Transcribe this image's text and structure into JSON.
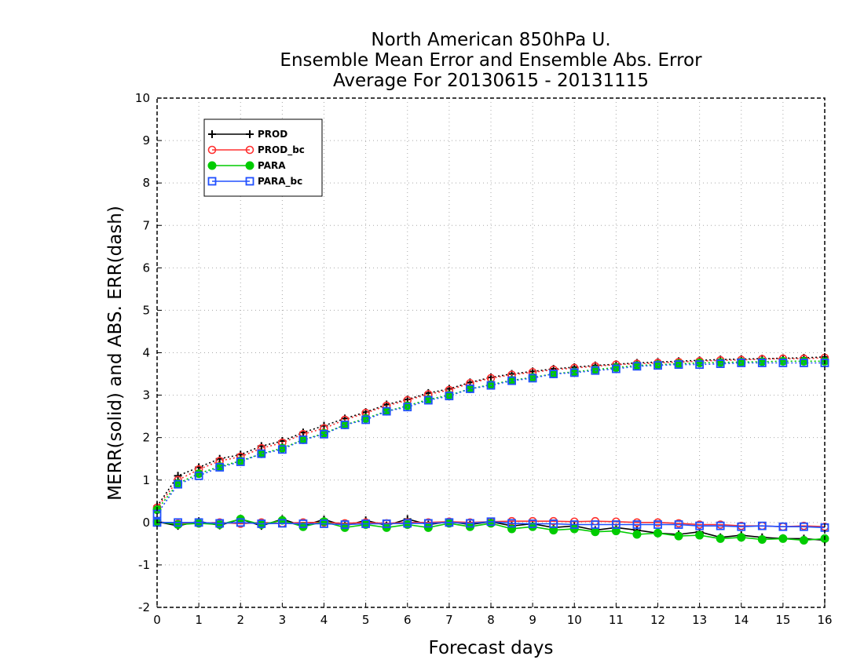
{
  "chart_data": {
    "type": "line",
    "title": [
      "North American 850hPa U.",
      "Ensemble Mean Error and Ensemble Abs. Error",
      "Average For 20130615 - 20131115"
    ],
    "xlabel": "Forecast days",
    "ylabel": "MERR(solid) and ABS. ERR(dash)",
    "xlim": [
      0,
      16
    ],
    "ylim": [
      -2,
      10
    ],
    "xticks": [
      0,
      1,
      2,
      3,
      4,
      5,
      6,
      7,
      8,
      9,
      10,
      11,
      12,
      13,
      14,
      15,
      16
    ],
    "yticks": [
      -2,
      -1,
      0,
      1,
      2,
      3,
      4,
      5,
      6,
      7,
      8,
      9,
      10
    ],
    "grid": true,
    "legend_position": "top-left",
    "x": [
      0,
      0.5,
      1,
      1.5,
      2,
      2.5,
      3,
      3.5,
      4,
      4.5,
      5,
      5.5,
      6,
      6.5,
      7,
      7.5,
      8,
      8.5,
      9,
      9.5,
      10,
      10.5,
      11,
      11.5,
      12,
      12.5,
      13,
      13.5,
      14,
      14.5,
      15,
      15.5,
      16
    ],
    "series": [
      {
        "name": "PROD",
        "color": "#000000",
        "marker": "plus",
        "merr": [
          0.02,
          -0.08,
          0.03,
          -0.07,
          0.08,
          -0.08,
          0.08,
          -0.08,
          0.07,
          -0.08,
          0.05,
          -0.07,
          0.08,
          -0.05,
          0.02,
          -0.05,
          0.02,
          -0.08,
          -0.03,
          -0.12,
          -0.08,
          -0.18,
          -0.12,
          -0.18,
          -0.25,
          -0.28,
          -0.22,
          -0.35,
          -0.3,
          -0.35,
          -0.38,
          -0.38,
          -0.42
        ],
        "abs_err": [
          0.38,
          1.1,
          1.3,
          1.5,
          1.6,
          1.8,
          1.92,
          2.12,
          2.28,
          2.45,
          2.6,
          2.78,
          2.9,
          3.05,
          3.15,
          3.3,
          3.42,
          3.5,
          3.56,
          3.62,
          3.66,
          3.7,
          3.73,
          3.76,
          3.78,
          3.8,
          3.82,
          3.84,
          3.85,
          3.86,
          3.87,
          3.88,
          3.9
        ]
      },
      {
        "name": "PROD_bc",
        "color": "#ff3030",
        "marker": "circle-open",
        "merr": [
          0.02,
          -0.03,
          -0.02,
          0.0,
          -0.03,
          0.0,
          -0.02,
          0.0,
          0.0,
          -0.02,
          0.0,
          -0.02,
          0.0,
          0.0,
          0.02,
          0.0,
          0.02,
          0.03,
          0.03,
          0.03,
          0.02,
          0.03,
          0.02,
          0.0,
          0.0,
          -0.02,
          -0.05,
          -0.05,
          -0.08,
          -0.08,
          -0.1,
          -0.08,
          -0.1
        ],
        "abs_err": [
          0.35,
          1.0,
          1.25,
          1.45,
          1.55,
          1.75,
          1.88,
          2.08,
          2.22,
          2.42,
          2.58,
          2.75,
          2.88,
          3.02,
          3.12,
          3.28,
          3.4,
          3.48,
          3.54,
          3.6,
          3.64,
          3.68,
          3.72,
          3.74,
          3.76,
          3.78,
          3.8,
          3.82,
          3.83,
          3.85,
          3.86,
          3.86,
          3.88
        ]
      },
      {
        "name": "PARA",
        "color": "#00cc00",
        "marker": "circle-filled",
        "merr": [
          0.02,
          -0.05,
          -0.02,
          -0.05,
          0.08,
          -0.05,
          0.05,
          -0.1,
          0.02,
          -0.12,
          -0.05,
          -0.12,
          -0.05,
          -0.12,
          -0.02,
          -0.1,
          -0.02,
          -0.15,
          -0.1,
          -0.18,
          -0.15,
          -0.22,
          -0.2,
          -0.28,
          -0.25,
          -0.32,
          -0.3,
          -0.38,
          -0.35,
          -0.4,
          -0.38,
          -0.42,
          -0.38
        ],
        "abs_err": [
          0.3,
          0.92,
          1.15,
          1.32,
          1.45,
          1.62,
          1.75,
          1.95,
          2.1,
          2.3,
          2.45,
          2.62,
          2.75,
          2.9,
          3.0,
          3.15,
          3.25,
          3.35,
          3.42,
          3.5,
          3.55,
          3.6,
          3.65,
          3.7,
          3.72,
          3.74,
          3.76,
          3.77,
          3.78,
          3.79,
          3.8,
          3.8,
          3.8
        ]
      },
      {
        "name": "PARA_bc",
        "color": "#2050ff",
        "marker": "square-open",
        "merr": [
          0.0,
          0.0,
          0.0,
          -0.02,
          0.0,
          -0.03,
          -0.02,
          -0.03,
          -0.03,
          -0.05,
          -0.03,
          -0.03,
          -0.02,
          -0.02,
          0.0,
          -0.02,
          0.02,
          -0.02,
          -0.03,
          -0.03,
          -0.05,
          -0.05,
          -0.05,
          -0.05,
          -0.05,
          -0.05,
          -0.08,
          -0.08,
          -0.1,
          -0.08,
          -0.1,
          -0.1,
          -0.12
        ],
        "abs_err": [
          0.2,
          0.9,
          1.1,
          1.3,
          1.43,
          1.62,
          1.72,
          1.95,
          2.08,
          2.3,
          2.42,
          2.62,
          2.72,
          2.88,
          2.98,
          3.15,
          3.23,
          3.34,
          3.4,
          3.5,
          3.53,
          3.58,
          3.62,
          3.68,
          3.7,
          3.72,
          3.72,
          3.74,
          3.76,
          3.76,
          3.76,
          3.76,
          3.76
        ]
      }
    ]
  }
}
